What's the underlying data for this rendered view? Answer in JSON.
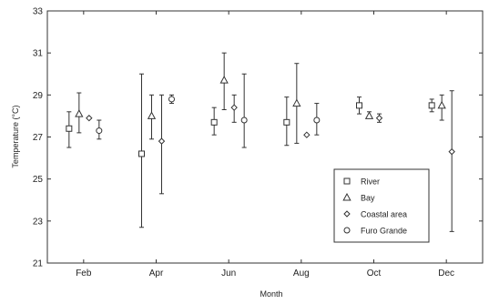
{
  "chart_data": {
    "type": "scatter",
    "xlabel": "Month",
    "ylabel": "Temperature (°C)",
    "categories": [
      "Feb",
      "Apr",
      "Jun",
      "Aug",
      "Oct",
      "Dec"
    ],
    "ylim": [
      21,
      33
    ],
    "yticks": [
      21,
      23,
      25,
      27,
      29,
      31,
      33
    ],
    "grid": false,
    "legend_position": "bottom-right",
    "error_bars": true,
    "series": [
      {
        "name": "River",
        "marker": "square",
        "values": [
          27.4,
          26.2,
          27.7,
          27.7,
          28.5,
          28.5
        ],
        "lower": [
          26.5,
          22.7,
          27.1,
          26.6,
          28.1,
          28.2
        ],
        "upper": [
          28.2,
          30.0,
          28.4,
          28.9,
          28.9,
          28.8
        ]
      },
      {
        "name": "Bay",
        "marker": "triangle",
        "values": [
          28.1,
          28.0,
          29.7,
          28.6,
          28.0,
          28.5
        ],
        "lower": [
          27.2,
          26.9,
          28.3,
          26.7,
          27.9,
          27.8
        ],
        "upper": [
          29.1,
          29.0,
          31.0,
          30.5,
          28.2,
          29.0
        ]
      },
      {
        "name": "Coastal area",
        "marker": "diamond",
        "values": [
          27.9,
          26.8,
          28.4,
          27.1,
          27.9,
          26.3
        ],
        "lower": [
          27.9,
          24.3,
          27.7,
          27.1,
          27.7,
          22.5
        ],
        "upper": [
          27.9,
          29.0,
          29.0,
          27.1,
          28.1,
          29.2
        ]
      },
      {
        "name": "Furo Grande",
        "marker": "circle",
        "values": [
          27.3,
          28.8,
          27.8,
          27.8,
          null,
          null
        ],
        "lower": [
          26.9,
          28.6,
          26.5,
          27.1,
          null,
          null
        ],
        "upper": [
          27.8,
          29.0,
          30.0,
          28.6,
          null,
          null
        ]
      }
    ]
  }
}
